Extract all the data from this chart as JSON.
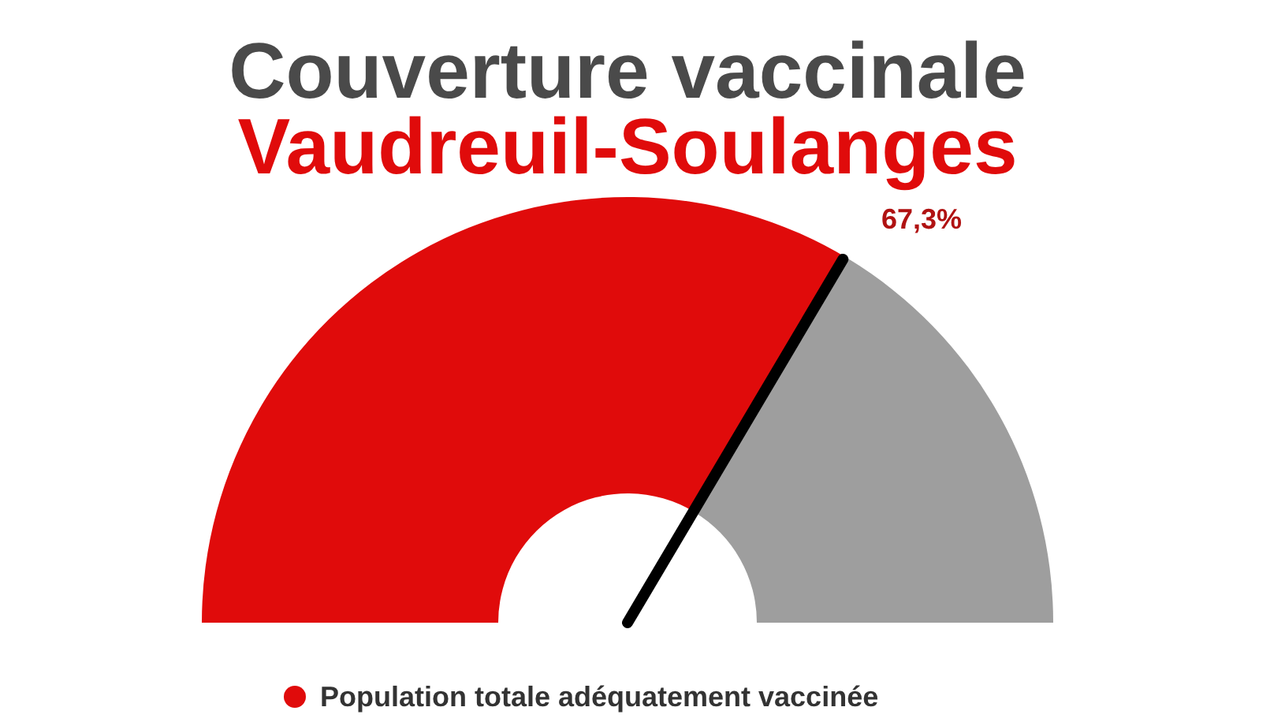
{
  "chart_data": {
    "type": "donut",
    "title": "Couverture vaccinale",
    "subtitle": "Vaudreuil-Soulanges",
    "categories": [
      "Population totale adéquatement vaccinée",
      null
    ],
    "values": [
      67.3,
      32.7
    ],
    "colors": [
      "#e00b0b",
      "#9e9e9e"
    ],
    "value_labels": [
      "67,3%",
      null
    ],
    "needle": "Population totale adéquatement vaccinée",
    "legend": "bottom"
  }
}
